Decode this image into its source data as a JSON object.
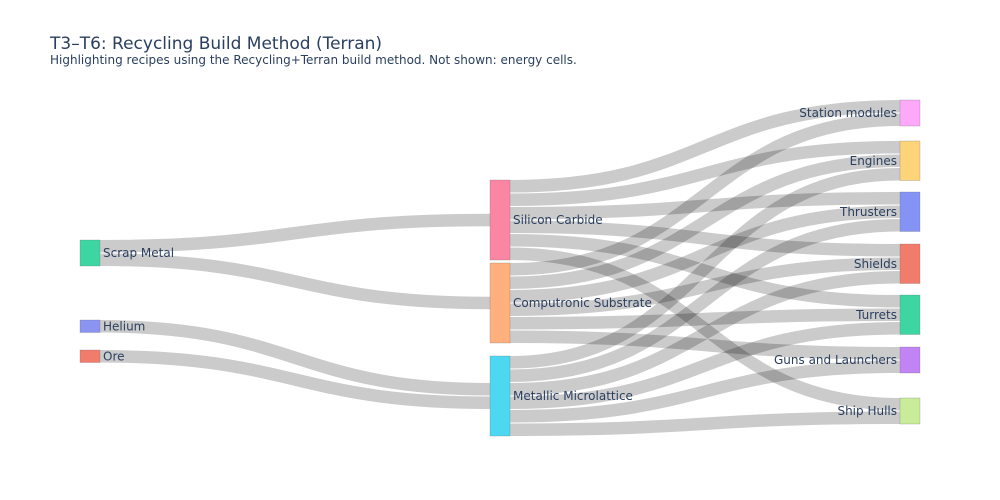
{
  "chart_data": {
    "type": "sankey",
    "title": "T3–T6: Recycling Build Method (Terran)",
    "subtitle": "Highlighting recipes using the Recycling+Terran build method. Not shown: energy cells.",
    "link_color": "#c8c8c8",
    "nodes": [
      {
        "id": "scrap",
        "label": "Scrap Metal",
        "color": "#3dd6a3",
        "column": 0
      },
      {
        "id": "helium",
        "label": "Helium",
        "color": "#8c94f2",
        "column": 0
      },
      {
        "id": "ore",
        "label": "Ore",
        "color": "#f27c6b",
        "column": 0
      },
      {
        "id": "sic",
        "label": "Silicon Carbide",
        "color": "#fb86a3",
        "column": 1
      },
      {
        "id": "comp",
        "label": "Computronic Substrate",
        "color": "#ffb07c",
        "column": 1
      },
      {
        "id": "metal",
        "label": "Metallic Microlattice",
        "color": "#4dd8f2",
        "column": 1
      },
      {
        "id": "station",
        "label": "Station modules",
        "color": "#fda8f8",
        "column": 2
      },
      {
        "id": "engines",
        "label": "Engines",
        "color": "#fdd47a",
        "column": 2
      },
      {
        "id": "thrusters",
        "label": "Thrusters",
        "color": "#8593f5",
        "column": 2
      },
      {
        "id": "shields",
        "label": "Shields",
        "color": "#f27c6b",
        "column": 2
      },
      {
        "id": "turrets",
        "label": "Turrets",
        "color": "#3dd6a3",
        "column": 2
      },
      {
        "id": "guns",
        "label": "Guns and Launchers",
        "color": "#c084f5",
        "column": 2
      },
      {
        "id": "hulls",
        "label": "Ship Hulls",
        "color": "#c9ec9a",
        "column": 2
      }
    ],
    "links": [
      {
        "source": "scrap",
        "target": "sic",
        "value": 1
      },
      {
        "source": "scrap",
        "target": "comp",
        "value": 1
      },
      {
        "source": "helium",
        "target": "metal",
        "value": 1
      },
      {
        "source": "ore",
        "target": "metal",
        "value": 1
      },
      {
        "source": "sic",
        "target": "station",
        "value": 1
      },
      {
        "source": "sic",
        "target": "engines",
        "value": 1
      },
      {
        "source": "sic",
        "target": "thrusters",
        "value": 1
      },
      {
        "source": "sic",
        "target": "shields",
        "value": 1
      },
      {
        "source": "sic",
        "target": "turrets",
        "value": 1
      },
      {
        "source": "sic",
        "target": "hulls",
        "value": 1
      },
      {
        "source": "comp",
        "target": "station",
        "value": 1
      },
      {
        "source": "comp",
        "target": "engines",
        "value": 1
      },
      {
        "source": "comp",
        "target": "thrusters",
        "value": 1
      },
      {
        "source": "comp",
        "target": "shields",
        "value": 1
      },
      {
        "source": "comp",
        "target": "turrets",
        "value": 1
      },
      {
        "source": "comp",
        "target": "guns",
        "value": 1
      },
      {
        "source": "metal",
        "target": "engines",
        "value": 1
      },
      {
        "source": "metal",
        "target": "thrusters",
        "value": 1
      },
      {
        "source": "metal",
        "target": "shields",
        "value": 1
      },
      {
        "source": "metal",
        "target": "turrets",
        "value": 1
      },
      {
        "source": "metal",
        "target": "guns",
        "value": 1
      },
      {
        "source": "metal",
        "target": "hulls",
        "value": 1
      }
    ]
  }
}
